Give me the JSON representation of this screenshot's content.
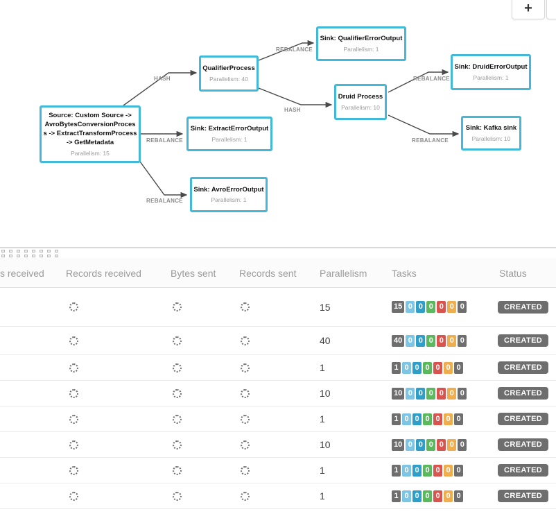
{
  "zoom_controls": {
    "zoom_in_label": "+",
    "zoom_out_label": "−"
  },
  "graph": {
    "nodes": [
      {
        "name": "Source: Custom Source -> AvroBytesConversionProcess -> ExtractTransformProcess -> GetMetadata",
        "parallelism": "Parallelism: 15"
      },
      {
        "name": "QualifierProcess",
        "parallelism": "Parallelism: 40"
      },
      {
        "name": "Sink: QualifierErrorOutput",
        "parallelism": "Parallelism: 1"
      },
      {
        "name": "Druid Process",
        "parallelism": "Parallelism: 10"
      },
      {
        "name": "Sink: DruidErrorOutput",
        "parallelism": "Parallelism: 1"
      },
      {
        "name": "Sink: Kafka sink",
        "parallelism": "Parallelism: 10"
      },
      {
        "name": "Sink: ExtractErrorOutput",
        "parallelism": "Parallelism: 1"
      },
      {
        "name": "Sink: AvroErrorOutput",
        "parallelism": "Parallelism: 1"
      }
    ],
    "edge_labels": [
      "HASH",
      "REBALANCE",
      "HASH",
      "REBALANCE",
      "REBALANCE",
      "REBALANCE",
      "REBALANCE"
    ]
  },
  "table": {
    "headers": [
      "s received",
      "Records received",
      "Bytes sent",
      "Records sent",
      "Parallelism",
      "Tasks",
      "Status"
    ],
    "rows": [
      {
        "parallelism": "15",
        "tasks": [
          "15",
          "0",
          "0",
          "0",
          "0",
          "0",
          "0"
        ],
        "status": "CREATED"
      },
      {
        "parallelism": "40",
        "tasks": [
          "40",
          "0",
          "0",
          "0",
          "0",
          "0",
          "0"
        ],
        "status": "CREATED"
      },
      {
        "parallelism": "1",
        "tasks": [
          "1",
          "0",
          "0",
          "0",
          "0",
          "0",
          "0"
        ],
        "status": "CREATED"
      },
      {
        "parallelism": "10",
        "tasks": [
          "10",
          "0",
          "0",
          "0",
          "0",
          "0",
          "0"
        ],
        "status": "CREATED"
      },
      {
        "parallelism": "1",
        "tasks": [
          "1",
          "0",
          "0",
          "0",
          "0",
          "0",
          "0"
        ],
        "status": "CREATED"
      },
      {
        "parallelism": "10",
        "tasks": [
          "10",
          "0",
          "0",
          "0",
          "0",
          "0",
          "0"
        ],
        "status": "CREATED"
      },
      {
        "parallelism": "1",
        "tasks": [
          "1",
          "0",
          "0",
          "0",
          "0",
          "0",
          "0"
        ],
        "status": "CREATED"
      },
      {
        "parallelism": "1",
        "tasks": [
          "1",
          "0",
          "0",
          "0",
          "0",
          "0",
          "0"
        ],
        "status": "CREATED"
      }
    ]
  },
  "colors": {
    "node_border": "#43b9d8",
    "edge": "#4a4a4a",
    "edge_label": "#8a8a8a",
    "badge_colors": [
      "#6e6e6e",
      "#7cc5e4",
      "#2f9ec9",
      "#5cb85c",
      "#d9534f",
      "#f0ad4e",
      "#6e6e6e"
    ],
    "status_badge": "#6e6e6e"
  }
}
